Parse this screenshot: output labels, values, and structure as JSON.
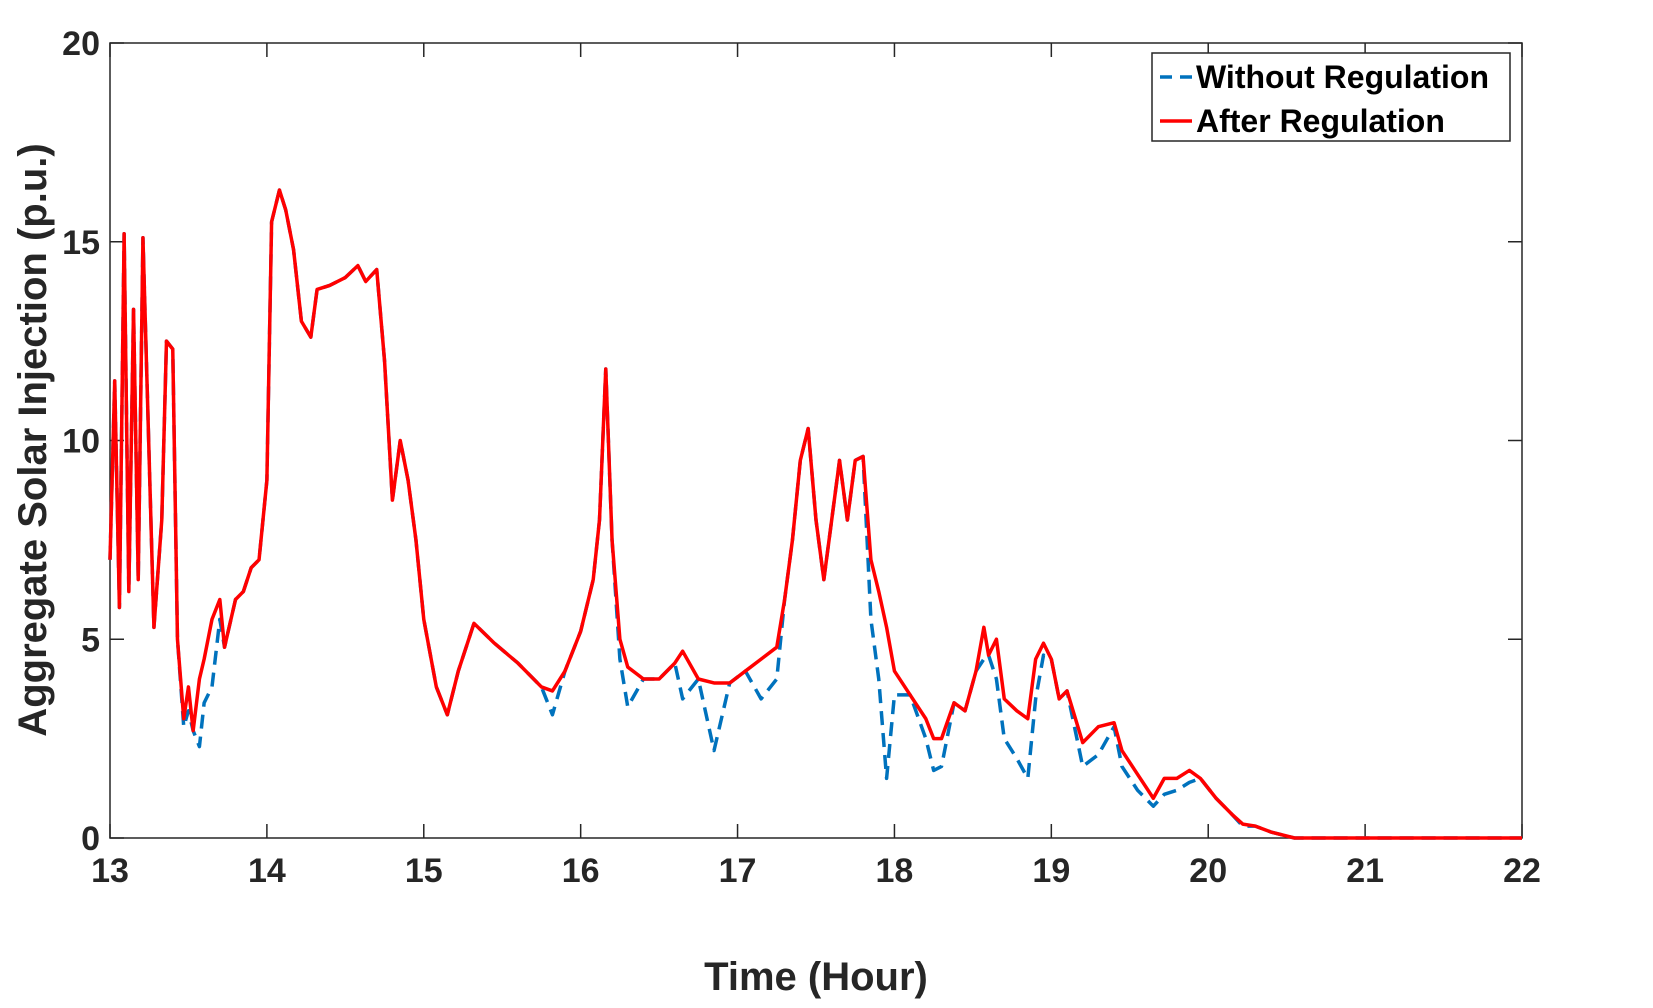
{
  "chart_data": {
    "type": "line",
    "xlabel": "Time (Hour)",
    "ylabel": "Aggregate Solar Injection (p.u.)",
    "xlim": [
      13,
      22
    ],
    "ylim": [
      0,
      20
    ],
    "xticks": [
      13,
      14,
      15,
      16,
      17,
      18,
      19,
      20,
      21,
      22
    ],
    "yticks": [
      0,
      5,
      10,
      15,
      20
    ],
    "legend": "upper right",
    "x": [
      13.0,
      13.03,
      13.06,
      13.09,
      13.12,
      13.15,
      13.18,
      13.21,
      13.25,
      13.28,
      13.33,
      13.36,
      13.4,
      13.43,
      13.47,
      13.5,
      13.53,
      13.57,
      13.6,
      13.65,
      13.7,
      13.73,
      13.8,
      13.85,
      13.9,
      13.95,
      14.0,
      14.03,
      14.08,
      14.12,
      14.17,
      14.22,
      14.28,
      14.32,
      14.4,
      14.5,
      14.58,
      14.63,
      14.7,
      14.75,
      14.8,
      14.85,
      14.9,
      14.95,
      15.0,
      15.08,
      15.15,
      15.22,
      15.32,
      15.45,
      15.6,
      15.75,
      15.82,
      15.9,
      16.0,
      16.08,
      16.12,
      16.16,
      16.2,
      16.25,
      16.3,
      16.4,
      16.5,
      16.6,
      16.65,
      16.75,
      16.85,
      16.95,
      17.05,
      17.15,
      17.25,
      17.3,
      17.35,
      17.4,
      17.45,
      17.5,
      17.55,
      17.6,
      17.65,
      17.7,
      17.75,
      17.8,
      17.85,
      17.9,
      17.95,
      18.0,
      18.1,
      18.2,
      18.25,
      18.3,
      18.38,
      18.45,
      18.52,
      18.57,
      18.6,
      18.65,
      18.7,
      18.78,
      18.85,
      18.9,
      18.95,
      19.0,
      19.05,
      19.1,
      19.2,
      19.3,
      19.4,
      19.45,
      19.55,
      19.65,
      19.72,
      19.8,
      19.88,
      19.95,
      20.05,
      20.15,
      20.22,
      20.3,
      20.4,
      20.55,
      21,
      22
    ],
    "series": [
      {
        "name": "Without Regulation",
        "color": "#0072bd",
        "dashed": true,
        "values": [
          7,
          11.5,
          5.8,
          15.2,
          6.2,
          13.3,
          6.5,
          15.1,
          9.5,
          5.3,
          8,
          12.5,
          12.3,
          5,
          2.8,
          3.2,
          2.7,
          2.3,
          3.4,
          3.8,
          5.5,
          4.8,
          6,
          6.2,
          6.8,
          7,
          9,
          15.5,
          16.3,
          15.8,
          14.8,
          13,
          12.6,
          13.8,
          13.9,
          14.1,
          14.4,
          14,
          14.3,
          12,
          8.5,
          10,
          9,
          7.5,
          5.5,
          3.8,
          3.1,
          4.2,
          5.4,
          4.9,
          4.4,
          3.8,
          3.1,
          4.2,
          5.2,
          6.5,
          8,
          11.8,
          7.5,
          4.5,
          3.3,
          4,
          4,
          4.4,
          3.5,
          4,
          2.2,
          3.9,
          4.2,
          3.5,
          4,
          6,
          7.5,
          9.5,
          10.3,
          8,
          6.5,
          8,
          9.5,
          8,
          9.5,
          9.6,
          5.5,
          4,
          1.5,
          3.6,
          3.6,
          2.5,
          1.7,
          1.8,
          3.4,
          3.2,
          4.2,
          4.5,
          4.6,
          4,
          2.5,
          2,
          1.5,
          3.5,
          4.6,
          4.5,
          3.5,
          3.7,
          1.8,
          2.1,
          2.8,
          1.8,
          1.2,
          0.8,
          1.1,
          1.2,
          1.4,
          1.5,
          1,
          0.6,
          0.3,
          0.3,
          0.15,
          0,
          0,
          0
        ]
      },
      {
        "name": "After Regulation",
        "color": "#ff0000",
        "dashed": false,
        "values": [
          7,
          11.5,
          5.8,
          15.2,
          6.2,
          13.3,
          6.5,
          15.1,
          9.5,
          5.3,
          8,
          12.5,
          12.3,
          5,
          3,
          3.8,
          2.7,
          4,
          4.5,
          5.5,
          6,
          4.8,
          6,
          6.2,
          6.8,
          7,
          9,
          15.5,
          16.3,
          15.8,
          14.8,
          13,
          12.6,
          13.8,
          13.9,
          14.1,
          14.4,
          14,
          14.3,
          12,
          8.5,
          10,
          9,
          7.5,
          5.5,
          3.8,
          3.1,
          4.2,
          5.4,
          4.9,
          4.4,
          3.8,
          3.7,
          4.2,
          5.2,
          6.5,
          8,
          11.8,
          7.5,
          5,
          4.3,
          4,
          4,
          4.4,
          4.7,
          4,
          3.9,
          3.9,
          4.2,
          4.5,
          4.8,
          6,
          7.5,
          9.5,
          10.3,
          8,
          6.5,
          8,
          9.5,
          8,
          9.5,
          9.6,
          7,
          6.2,
          5.3,
          4.2,
          3.6,
          3,
          2.5,
          2.5,
          3.4,
          3.2,
          4.2,
          5.3,
          4.6,
          5,
          3.5,
          3.2,
          3,
          4.5,
          4.9,
          4.5,
          3.5,
          3.7,
          2.4,
          2.8,
          2.9,
          2.2,
          1.6,
          1,
          1.5,
          1.5,
          1.7,
          1.5,
          1,
          0.6,
          0.35,
          0.3,
          0.15,
          0,
          0,
          0
        ]
      }
    ]
  }
}
